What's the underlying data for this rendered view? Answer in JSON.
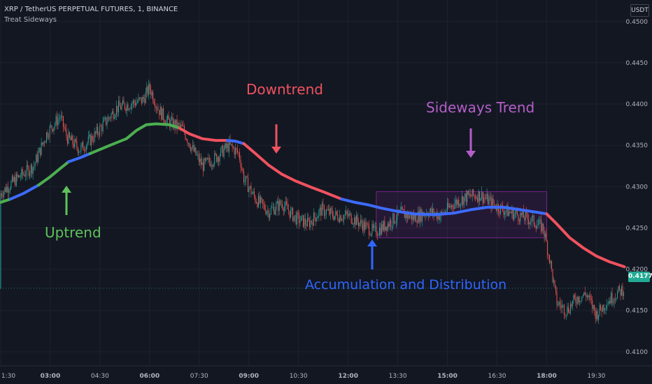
{
  "header": {
    "title": "XRP / TetherUS PERPETUAL FUTURES, 1, BINANCE",
    "subtitle": "Treat Sideways",
    "currency_badge": "USDT"
  },
  "colors": {
    "background": "#131722",
    "candle_up": "#26a69a",
    "candle_down": "#ef5350",
    "trend_up": "#4caf50",
    "trend_down": "#f0525f",
    "trend_sideways": "#3d6bff",
    "sideways_box": "#9c27b0",
    "label_uptrend": "#5ec25b",
    "label_downtrend": "#f0525f",
    "label_sideways": "#b45fc8",
    "label_accumulation": "#2f66ff",
    "price_tag": "#22ab94"
  },
  "annotations": {
    "uptrend": "Uptrend",
    "downtrend": "Downtrend",
    "sideways": "Sideways Trend",
    "accumulation": "Accumulation and Distribution"
  },
  "last_price": "0.4177",
  "chart_data": {
    "type": "line",
    "title": "XRP / TetherUS PERPETUAL FUTURES, 1, BINANCE",
    "x_tick_labels": [
      "1:30",
      "03:00",
      "04:30",
      "06:00",
      "07:30",
      "09:00",
      "10:30",
      "12:00",
      "13:30",
      "15:00",
      "16:30",
      "18:00",
      "19:30"
    ],
    "x_tick_hours": [
      1.5,
      3.0,
      4.5,
      6.0,
      7.5,
      9.0,
      10.5,
      12.0,
      13.5,
      15.0,
      16.5,
      18.0,
      19.5
    ],
    "y_tick_labels": [
      "0.4100",
      "0.4150",
      "0.4200",
      "0.4250",
      "0.4300",
      "0.4350",
      "0.4400",
      "0.4450",
      "0.4500"
    ],
    "ylim": [
      0.4083,
      0.4526
    ],
    "xlim_hours": [
      1.48,
      20.4
    ],
    "last_price": 0.4177,
    "sideways_zone": {
      "x_start_hour": 12.85,
      "x_end_hour": 18.0,
      "y_low": 0.4238,
      "y_high": 0.4294
    },
    "price_path": [
      [
        1.5,
        0.4292
      ],
      [
        2.0,
        0.431
      ],
      [
        2.5,
        0.4325
      ],
      [
        2.9,
        0.4365
      ],
      [
        3.3,
        0.4385
      ],
      [
        3.5,
        0.436
      ],
      [
        3.9,
        0.4345
      ],
      [
        4.3,
        0.436
      ],
      [
        4.7,
        0.438
      ],
      [
        5.0,
        0.4395
      ],
      [
        5.4,
        0.44
      ],
      [
        5.8,
        0.4405
      ],
      [
        6.0,
        0.442
      ],
      [
        6.25,
        0.4395
      ],
      [
        6.5,
        0.438
      ],
      [
        7.0,
        0.437
      ],
      [
        7.3,
        0.4345
      ],
      [
        7.6,
        0.4325
      ],
      [
        8.0,
        0.4335
      ],
      [
        8.4,
        0.435
      ],
      [
        8.7,
        0.434
      ],
      [
        8.85,
        0.431
      ],
      [
        9.2,
        0.4285
      ],
      [
        9.6,
        0.427
      ],
      [
        10.0,
        0.428
      ],
      [
        10.4,
        0.4262
      ],
      [
        10.8,
        0.4255
      ],
      [
        11.2,
        0.4272
      ],
      [
        11.6,
        0.4265
      ],
      [
        12.0,
        0.4265
      ],
      [
        12.4,
        0.4255
      ],
      [
        12.8,
        0.4245
      ],
      [
        13.2,
        0.4255
      ],
      [
        13.6,
        0.4268
      ],
      [
        14.0,
        0.4262
      ],
      [
        14.4,
        0.427
      ],
      [
        14.8,
        0.4265
      ],
      [
        15.2,
        0.428
      ],
      [
        15.6,
        0.4288
      ],
      [
        16.0,
        0.429
      ],
      [
        16.4,
        0.4278
      ],
      [
        16.8,
        0.427
      ],
      [
        17.2,
        0.4265
      ],
      [
        17.6,
        0.4258
      ],
      [
        17.9,
        0.425
      ],
      [
        18.1,
        0.421
      ],
      [
        18.3,
        0.416
      ],
      [
        18.6,
        0.415
      ],
      [
        18.9,
        0.4165
      ],
      [
        19.2,
        0.417
      ],
      [
        19.5,
        0.4145
      ],
      [
        19.8,
        0.416
      ],
      [
        20.1,
        0.417
      ],
      [
        20.35,
        0.4177
      ]
    ],
    "series": [
      {
        "trend": "up",
        "color": "#4caf50",
        "points": [
          [
            1.5,
            0.4281
          ],
          [
            1.8,
            0.4285
          ]
        ]
      },
      {
        "trend": "sideways",
        "color": "#3d6bff",
        "points": [
          [
            1.8,
            0.4285
          ],
          [
            2.2,
            0.4292
          ],
          [
            2.65,
            0.4302
          ]
        ]
      },
      {
        "trend": "up",
        "color": "#4caf50",
        "points": [
          [
            2.65,
            0.4302
          ],
          [
            3.0,
            0.4312
          ],
          [
            3.3,
            0.4322
          ],
          [
            3.55,
            0.433
          ]
        ]
      },
      {
        "trend": "sideways",
        "color": "#3d6bff",
        "points": [
          [
            3.55,
            0.433
          ],
          [
            3.9,
            0.4335
          ],
          [
            4.2,
            0.434
          ]
        ]
      },
      {
        "trend": "up",
        "color": "#4caf50",
        "points": [
          [
            4.2,
            0.434
          ],
          [
            4.8,
            0.435
          ],
          [
            5.3,
            0.4358
          ],
          [
            5.6,
            0.4368
          ],
          [
            5.9,
            0.4375
          ],
          [
            6.2,
            0.4376
          ],
          [
            6.6,
            0.4375
          ],
          [
            6.9,
            0.4371
          ]
        ]
      },
      {
        "trend": "down",
        "color": "#f0525f",
        "points": [
          [
            6.9,
            0.4371
          ],
          [
            7.2,
            0.4364
          ],
          [
            7.6,
            0.4358
          ],
          [
            8.0,
            0.4356
          ],
          [
            8.35,
            0.4356
          ]
        ]
      },
      {
        "trend": "sideways",
        "color": "#3d6bff",
        "points": [
          [
            8.35,
            0.4356
          ],
          [
            8.6,
            0.4355
          ],
          [
            8.85,
            0.4352
          ]
        ]
      },
      {
        "trend": "down",
        "color": "#f0525f",
        "points": [
          [
            8.85,
            0.4352
          ],
          [
            9.2,
            0.434
          ],
          [
            9.6,
            0.4326
          ],
          [
            10.0,
            0.4315
          ],
          [
            10.4,
            0.4307
          ],
          [
            10.9,
            0.4299
          ],
          [
            11.3,
            0.4293
          ],
          [
            11.8,
            0.4285
          ]
        ]
      },
      {
        "trend": "sideways",
        "color": "#3d6bff",
        "points": [
          [
            11.8,
            0.4285
          ],
          [
            12.2,
            0.4281
          ],
          [
            12.6,
            0.4278
          ],
          [
            13.0,
            0.4274
          ],
          [
            13.5,
            0.427
          ],
          [
            14.0,
            0.4267
          ],
          [
            14.6,
            0.4266
          ],
          [
            15.2,
            0.4268
          ],
          [
            15.7,
            0.4272
          ],
          [
            16.2,
            0.4275
          ],
          [
            16.7,
            0.4275
          ],
          [
            17.2,
            0.4272
          ],
          [
            17.7,
            0.4269
          ],
          [
            18.0,
            0.4267
          ]
        ]
      },
      {
        "trend": "down",
        "color": "#f0525f",
        "points": [
          [
            18.0,
            0.4267
          ],
          [
            18.3,
            0.4255
          ],
          [
            18.7,
            0.4238
          ],
          [
            19.1,
            0.4226
          ],
          [
            19.5,
            0.4216
          ],
          [
            19.9,
            0.4209
          ],
          [
            20.35,
            0.4203
          ]
        ]
      }
    ]
  }
}
